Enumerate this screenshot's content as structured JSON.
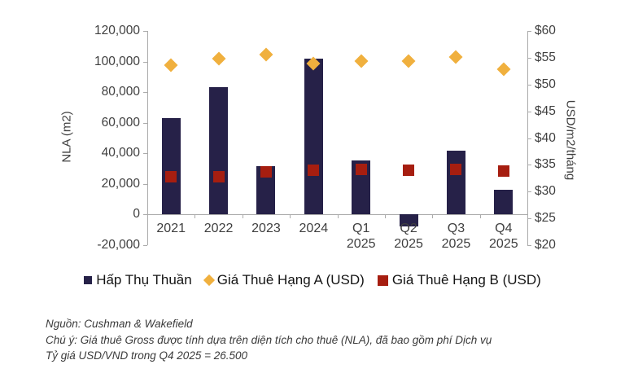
{
  "chart_data": {
    "type": "bar",
    "categories": [
      [
        "2021"
      ],
      [
        "2022"
      ],
      [
        "2023"
      ],
      [
        "2024"
      ],
      [
        "Q1",
        "2025"
      ],
      [
        "Q2",
        "2025"
      ],
      [
        "Q3",
        "2025"
      ],
      [
        "Q4",
        "2025"
      ]
    ],
    "series": [
      {
        "name": "Hấp Thụ Thuần",
        "type": "bar",
        "axis": "left",
        "color": "#262148",
        "values": [
          63000,
          83500,
          31500,
          102000,
          35500,
          -7500,
          42000,
          16000
        ]
      },
      {
        "name": "Giá Thuê Hạng A (USD)",
        "type": "scatter-diamond",
        "axis": "right",
        "color": "#f0b03e",
        "values": [
          53.6,
          54.8,
          55.6,
          53.9,
          54.3,
          54.3,
          55.2,
          52.9
        ]
      },
      {
        "name": "Giá Thuê Hạng B (USD)",
        "type": "scatter-square",
        "axis": "right",
        "color": "#a61e10",
        "values": [
          32.8,
          32.7,
          33.7,
          34.0,
          34.2,
          34.0,
          34.2,
          33.9
        ]
      }
    ],
    "left_axis": {
      "label": "NLA (m2)",
      "min": -20000,
      "max": 120000,
      "step": 20000
    },
    "right_axis": {
      "label": "USD/m2/tháng",
      "min": 20,
      "max": 60,
      "step": 5,
      "prefix": "$"
    },
    "grid": "off",
    "legend_position": "bottom",
    "background": "#ffffff",
    "axis_color": "#ababab"
  },
  "footer": {
    "source": "Nguồn: Cushman & Wakefield",
    "note": "Chú ý: Giá thuê Gross được tính dựa trên diện tích cho thuê (NLA), đã bao gồm phí Dịch vụ",
    "fx_note": "Tỷ giá USD/VND trong Q4 2025 = 26.500"
  }
}
